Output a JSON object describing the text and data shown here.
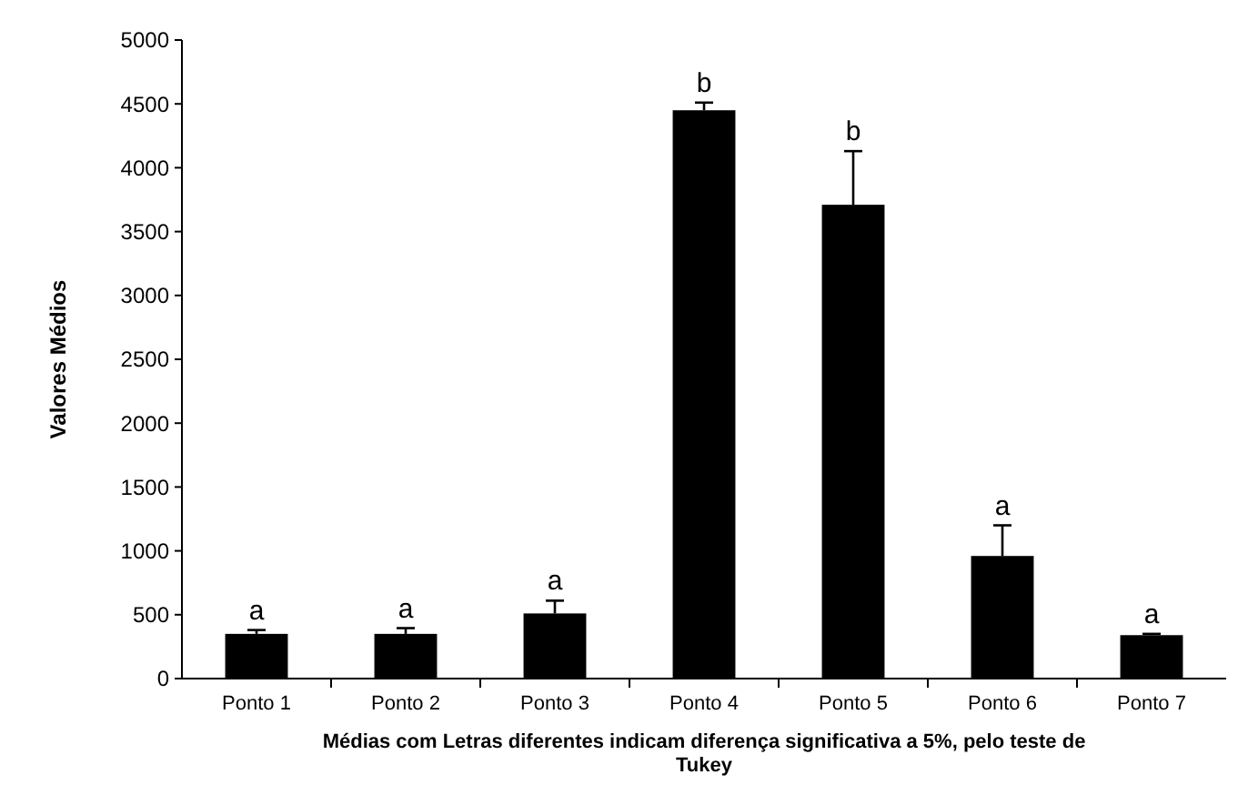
{
  "chart_data": {
    "type": "bar",
    "categories": [
      "Ponto 1",
      "Ponto 2",
      "Ponto 3",
      "Ponto 4",
      "Ponto 5",
      "Ponto 6",
      "Ponto 7"
    ],
    "values": [
      350,
      350,
      510,
      4450,
      3710,
      960,
      340
    ],
    "errors": [
      30,
      45,
      100,
      60,
      420,
      240,
      10
    ],
    "color": "#000000",
    "ylim": [
      0,
      5000
    ],
    "yticks": [
      0,
      500,
      1000,
      1500,
      2000,
      2500,
      3000,
      3500,
      4000,
      4500,
      5000
    ],
    "ylabel": "Valores  Médios",
    "xlabel": "Médias com Letras diferentes indicam diferença significativa a 5%, pelo teste de Tukey",
    "annotations": [
      {
        "text": "a",
        "x": "Ponto 1",
        "y": 380
      },
      {
        "text": "a",
        "x": "Ponto 2",
        "y": 395
      },
      {
        "text": "a",
        "x": "Ponto 3",
        "y": 610
      },
      {
        "text": "b",
        "x": "Ponto 4",
        "y": 4510
      },
      {
        "text": "b",
        "x": "Ponto 5",
        "y": 4130
      },
      {
        "text": "a",
        "x": "Ponto 6",
        "y": 1200
      },
      {
        "text": "a",
        "x": "Ponto 7",
        "y": 350
      }
    ]
  }
}
